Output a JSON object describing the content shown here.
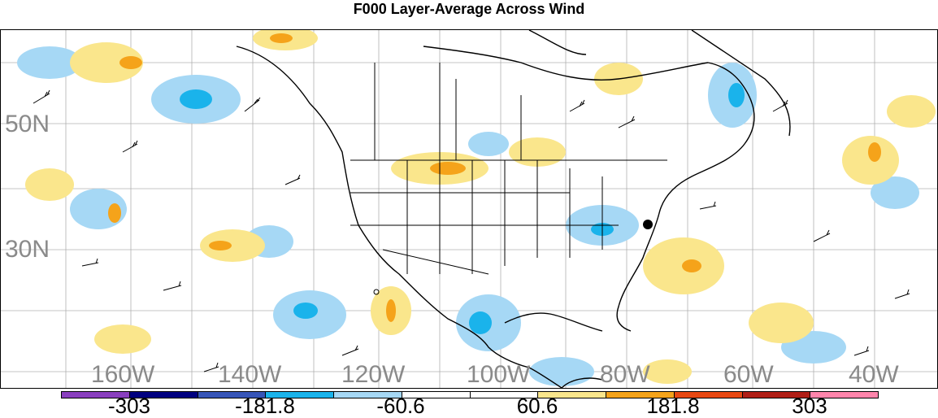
{
  "title": "F000 Layer-Average Across Wind",
  "lat_labels": [
    "50N",
    "30N"
  ],
  "lon_labels": [
    "160W",
    "140W",
    "120W",
    "100W",
    "80W",
    "60W",
    "40W"
  ],
  "colorbar": {
    "colors": [
      "#8a3fbf",
      "#000080",
      "#3755b8",
      "#1ab3eb",
      "#a6d8f5",
      "#ffffff",
      "#ffffff",
      "#fae68c",
      "#f5a31a",
      "#e84812",
      "#b01e16",
      "#ff85ac"
    ],
    "labels": [
      "-303",
      "-181.8",
      "-60.6",
      "60.6",
      "181.8",
      "303"
    ]
  },
  "map": {
    "feature": "marker",
    "marker_label": "black-dot"
  }
}
